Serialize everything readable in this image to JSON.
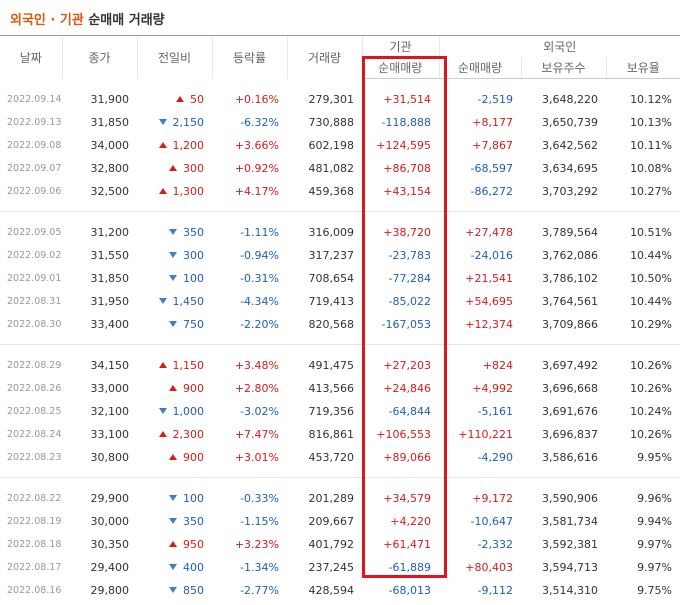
{
  "header": {
    "title_highlight": "외국인 · 기관",
    "title_rest": "순매매 거래량"
  },
  "table": {
    "header_top": [
      "날짜",
      "종가",
      "전일비",
      "등락률",
      "거래량",
      "기관",
      "외국인"
    ],
    "header_sub": [
      "순매매량",
      "순매매량",
      "보유주수",
      "보유율"
    ],
    "groups": [
      [
        [
          "2022.09.14",
          "31,900",
          "50",
          "+0.16%",
          "279,301",
          "+31,514",
          "-2,519",
          "3,648,220",
          "10.12%"
        ],
        [
          "2022.09.13",
          "31,850",
          "2,150",
          "-6.32%",
          "730,888",
          "-118,888",
          "+8,177",
          "3,650,739",
          "10.13%"
        ],
        [
          "2022.09.08",
          "34,000",
          "1,200",
          "+3.66%",
          "602,198",
          "+124,595",
          "+7,867",
          "3,642,562",
          "10.11%"
        ],
        [
          "2022.09.07",
          "32,800",
          "300",
          "+0.92%",
          "481,082",
          "+86,708",
          "-68,597",
          "3,634,695",
          "10.08%"
        ],
        [
          "2022.09.06",
          "32,500",
          "1,300",
          "+4.17%",
          "459,368",
          "+43,154",
          "-86,272",
          "3,703,292",
          "10.27%"
        ]
      ],
      [
        [
          "2022.09.05",
          "31,200",
          "350",
          "-1.11%",
          "316,009",
          "+38,720",
          "+27,478",
          "3,789,564",
          "10.51%"
        ],
        [
          "2022.09.02",
          "31,550",
          "300",
          "-0.94%",
          "317,237",
          "-23,783",
          "-24,016",
          "3,762,086",
          "10.44%"
        ],
        [
          "2022.09.01",
          "31,850",
          "100",
          "-0.31%",
          "708,654",
          "-77,284",
          "+21,541",
          "3,786,102",
          "10.50%"
        ],
        [
          "2022.08.31",
          "31,950",
          "1,450",
          "-4.34%",
          "719,413",
          "-85,022",
          "+54,695",
          "3,764,561",
          "10.44%"
        ],
        [
          "2022.08.30",
          "33,400",
          "750",
          "-2.20%",
          "820,568",
          "-167,053",
          "+12,374",
          "3,709,866",
          "10.29%"
        ]
      ],
      [
        [
          "2022.08.29",
          "34,150",
          "1,150",
          "+3.48%",
          "491,475",
          "+27,203",
          "+824",
          "3,697,492",
          "10.26%"
        ],
        [
          "2022.08.26",
          "33,000",
          "900",
          "+2.80%",
          "413,566",
          "+24,846",
          "+4,992",
          "3,696,668",
          "10.26%"
        ],
        [
          "2022.08.25",
          "32,100",
          "1,000",
          "-3.02%",
          "719,356",
          "-64,844",
          "-5,161",
          "3,691,676",
          "10.24%"
        ],
        [
          "2022.08.24",
          "33,100",
          "2,300",
          "+7.47%",
          "816,861",
          "+106,553",
          "+110,221",
          "3,696,837",
          "10.26%"
        ],
        [
          "2022.08.23",
          "30,800",
          "900",
          "+3.01%",
          "453,720",
          "+89,066",
          "-4,290",
          "3,586,616",
          "9.95%"
        ]
      ],
      [
        [
          "2022.08.22",
          "29,900",
          "100",
          "-0.33%",
          "201,289",
          "+34,579",
          "+9,172",
          "3,590,906",
          "9.96%"
        ],
        [
          "2022.08.19",
          "30,000",
          "350",
          "-1.15%",
          "209,667",
          "+4,220",
          "-10,647",
          "3,581,734",
          "9.94%"
        ],
        [
          "2022.08.18",
          "30,350",
          "950",
          "+3.23%",
          "401,792",
          "+61,471",
          "-2,332",
          "3,592,381",
          "9.97%"
        ],
        [
          "2022.08.17",
          "29,400",
          "400",
          "-1.34%",
          "237,245",
          "-61,889",
          "+80,403",
          "3,594,713",
          "9.97%"
        ],
        [
          "2022.08.16",
          "29,800",
          "850",
          "-2.77%",
          "428,594",
          "-68,013",
          "-9,112",
          "3,514,310",
          "9.75%"
        ]
      ]
    ]
  }
}
